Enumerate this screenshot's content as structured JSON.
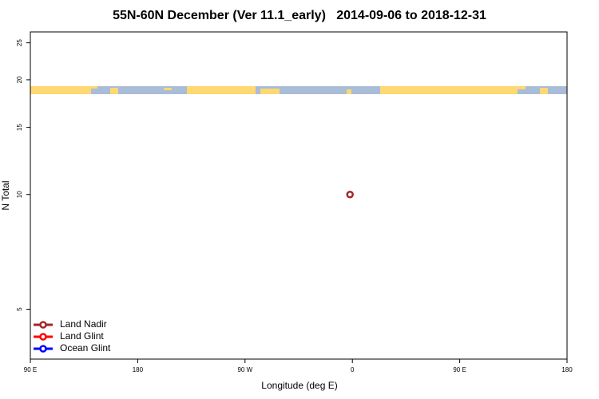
{
  "chart_data": {
    "type": "scatter",
    "title": "55N-60N December (Ver 11.1_early)   2014-09-06 to 2018-12-31",
    "xlabel": "Longitude (deg E)",
    "ylabel": "N Total",
    "xlim": [
      90,
      540
    ],
    "xticks": [
      {
        "value": 90,
        "label": "90 E"
      },
      180,
      {
        "value": 270,
        "label": "90 W"
      },
      {
        "value": 360,
        "label": "0"
      },
      {
        "value": 450,
        "label": "90 E"
      },
      {
        "value": 540,
        "label": "180"
      }
    ],
    "ylim": [
      3.7,
      26.7
    ],
    "yticks": [
      5,
      10,
      15,
      20,
      25
    ],
    "log_y": true,
    "legend": "lower left",
    "series": [
      {
        "name": "Land Nadir",
        "color": "#a3262a",
        "x": [
          358
        ],
        "values": [
          10
        ]
      },
      {
        "name": "Land Glint",
        "color": "#ff0000",
        "x": [],
        "values": []
      },
      {
        "name": "Ocean Glint",
        "color": "#0000ff",
        "x": [],
        "values": []
      }
    ]
  }
}
